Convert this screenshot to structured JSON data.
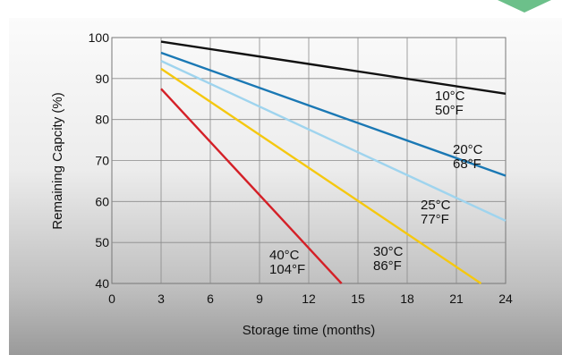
{
  "chart_data": {
    "type": "line",
    "xlabel": "Storage time (months)",
    "ylabel": "Remaining Capcity (%)",
    "xlim": [
      0,
      24
    ],
    "ylim": [
      40,
      100
    ],
    "xticks": [
      "0",
      "3",
      "6",
      "9",
      "12",
      "15",
      "18",
      "21",
      "24"
    ],
    "yticks": [
      "40",
      "50",
      "60",
      "70",
      "80",
      "90",
      "100"
    ],
    "grid": true,
    "series": [
      {
        "label_c": "10°C",
        "label_f": "50°F",
        "color": "#111111",
        "x": [
          3,
          24
        ],
        "y": [
          99,
          86.3
        ]
      },
      {
        "label_c": "20°C",
        "label_f": "68°F",
        "color": "#1a78b4",
        "x": [
          3,
          24
        ],
        "y": [
          96.3,
          66.3
        ]
      },
      {
        "label_c": "25°C",
        "label_f": "77°F",
        "color": "#9fd4ee",
        "x": [
          3,
          24
        ],
        "y": [
          94.3,
          55.3
        ]
      },
      {
        "label_c": "30°C",
        "label_f": "86°F",
        "color": "#f5c80f",
        "x": [
          3,
          22.5
        ],
        "y": [
          92.4,
          40
        ]
      },
      {
        "label_c": "40°C",
        "label_f": "104°F",
        "color": "#d42027",
        "x": [
          3,
          14
        ],
        "y": [
          87.5,
          40
        ]
      }
    ]
  }
}
